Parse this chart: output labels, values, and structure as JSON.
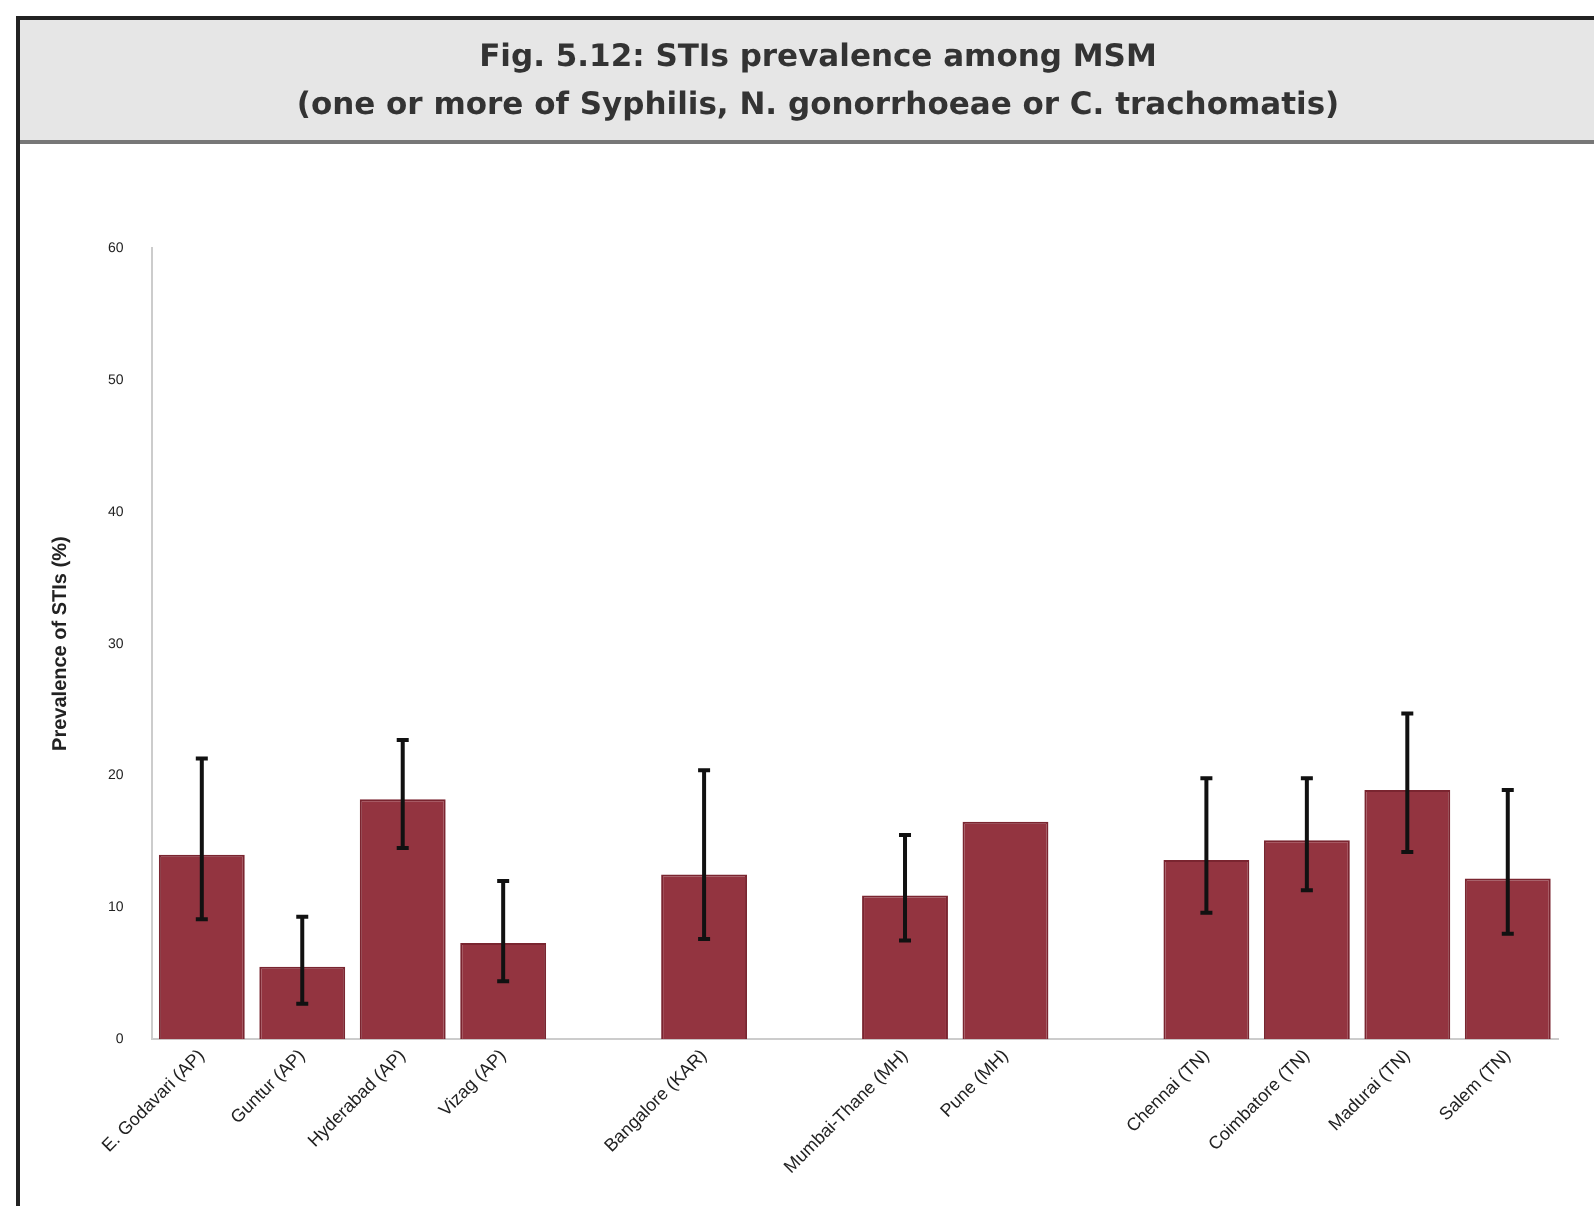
{
  "chart_data": {
    "type": "bar",
    "title": "Fig. 5.12: STIs prevalence among MSM",
    "subtitle": "(one or more of Syphilis, N. gonorrhoeae or C. trachomatis)",
    "ylabel": "Prevalence of STIs (%)",
    "categories": [
      "E. Godavari (AP)",
      "Guntur (AP)",
      "Hyderabad (AP)",
      "Vizag (AP)",
      null,
      "Bangalore (KAR)",
      null,
      "Mumbai-Thane (MH)",
      "Pune (MH)",
      null,
      "Chennai (TN)",
      "Coimbatore (TN)",
      "Madurai (TN)",
      "Salem (TN)"
    ],
    "values": [
      14.0,
      5.5,
      18.2,
      7.3,
      null,
      12.5,
      null,
      10.9,
      16.5,
      null,
      13.6,
      15.1,
      18.9,
      12.2
    ],
    "errors": [
      [
        9.1,
        21.3
      ],
      [
        2.7,
        9.3
      ],
      [
        14.5,
        22.7
      ],
      [
        4.4,
        12.0
      ],
      null,
      [
        7.6,
        20.4
      ],
      null,
      [
        7.5,
        15.5
      ],
      null,
      null,
      [
        9.6,
        19.8
      ],
      [
        11.3,
        19.8
      ],
      [
        14.2,
        24.7
      ],
      [
        8.0,
        18.9
      ]
    ],
    "color": "#933440",
    "ylim": [
      0,
      60
    ],
    "yticks": [
      0,
      10,
      20,
      30,
      40,
      50,
      60
    ],
    "grid": false,
    "legend": false
  }
}
